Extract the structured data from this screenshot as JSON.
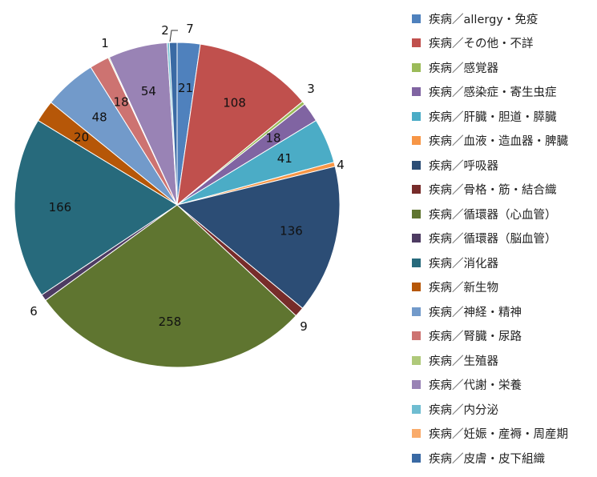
{
  "chart_data": {
    "type": "pie",
    "title": "",
    "legend_position": "right",
    "slices": [
      {
        "label": "疾病／allergy・免疫",
        "value": 21,
        "color": "#4f81bd"
      },
      {
        "label": "疾病／その他・不詳",
        "value": 108,
        "color": "#c0504d"
      },
      {
        "label": "疾病／感覚器",
        "value": 3,
        "color": "#9bbb59"
      },
      {
        "label": "疾病／感染症・寄生虫症",
        "value": 18,
        "color": "#8064a2"
      },
      {
        "label": "疾病／肝臓・胆道・膵臓",
        "value": 41,
        "color": "#4bacc6"
      },
      {
        "label": "疾病／血液・造血器・脾臓",
        "value": 4,
        "color": "#f79646"
      },
      {
        "label": "疾病／呼吸器",
        "value": 136,
        "color": "#2c4d75"
      },
      {
        "label": "疾病／骨格・筋・結合織",
        "value": 9,
        "color": "#772c2a"
      },
      {
        "label": "疾病／循環器（心血管）",
        "value": 258,
        "color": "#5f7530"
      },
      {
        "label": "疾病／循環器（脳血管）",
        "value": 6,
        "color": "#4d3b62"
      },
      {
        "label": "疾病／消化器",
        "value": 166,
        "color": "#276a7c"
      },
      {
        "label": "疾病／新生物",
        "value": 20,
        "color": "#b65708"
      },
      {
        "label": "疾病／神経・精神",
        "value": 48,
        "color": "#729aca"
      },
      {
        "label": "疾病／腎臓・尿路",
        "value": 18,
        "color": "#cd7371"
      },
      {
        "label": "疾病／生殖器",
        "value": 1,
        "color": "#afc97a"
      },
      {
        "label": "疾病／代謝・栄養",
        "value": 54,
        "color": "#9983b5"
      },
      {
        "label": "疾病／内分泌",
        "value": 2,
        "color": "#6fbdd1"
      },
      {
        "label": "疾病／妊娠・産褥・周産期",
        "value": 0,
        "color": "#f9ab6b"
      },
      {
        "label": "疾病／皮膚・皮下組織",
        "value": 7,
        "color": "#3a6aa4"
      }
    ]
  }
}
